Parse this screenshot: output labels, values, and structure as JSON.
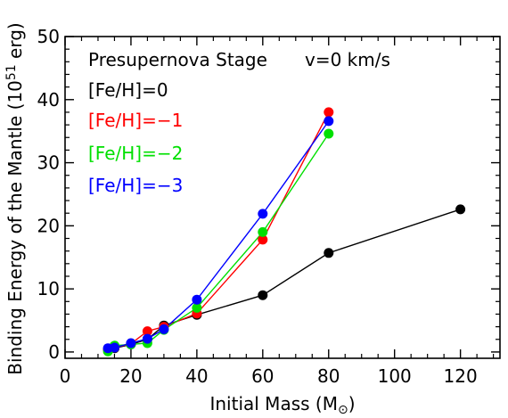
{
  "chart_data": {
    "type": "line",
    "xlabel": "Initial Mass (M",
    "xlabel_symbol": "⊙",
    "xlabel_suffix": ")",
    "ylabel": "Binding Energy of the Mantle (10",
    "ylabel_exponent": "51",
    "ylabel_suffix": " erg)",
    "xlim": [
      0,
      132
    ],
    "ylim": [
      -1,
      50
    ],
    "xticks": [
      0,
      20,
      40,
      60,
      80,
      100,
      120
    ],
    "yticks": [
      0,
      10,
      20,
      30,
      40,
      50
    ],
    "x_minor_step": 5,
    "y_minor_step": 2,
    "grid": false,
    "annotations": [
      {
        "text": "Presupernova Stage",
        "color": "#000000"
      },
      {
        "text": "v=0 km/s",
        "color": "#000000"
      }
    ],
    "series": [
      {
        "name": "[Fe/H]=0",
        "color": "#000000",
        "x": [
          13,
          15,
          20,
          25,
          30,
          40,
          60,
          80,
          120
        ],
        "y": [
          0.4,
          0.6,
          1.2,
          2.0,
          4.2,
          5.9,
          9.0,
          15.7,
          22.6
        ]
      },
      {
        "name": "[Fe/H]=−1",
        "color": "#ff0000",
        "x": [
          13,
          15,
          20,
          25,
          30,
          40,
          60,
          80
        ],
        "y": [
          0.4,
          0.7,
          1.3,
          3.3,
          4.0,
          6.1,
          17.8,
          38.0
        ]
      },
      {
        "name": "[Fe/H]=−2",
        "color": "#00e000",
        "x": [
          13,
          15,
          20,
          25,
          30,
          40,
          60,
          80
        ],
        "y": [
          0.1,
          1.0,
          1.2,
          1.4,
          3.5,
          7.0,
          19.0,
          34.6
        ]
      },
      {
        "name": "[Fe/H]=−3",
        "color": "#0000ff",
        "x": [
          13,
          15,
          20,
          25,
          30,
          40,
          60,
          80
        ],
        "y": [
          0.6,
          0.7,
          1.4,
          2.1,
          3.6,
          8.3,
          21.9,
          36.6
        ]
      }
    ]
  }
}
